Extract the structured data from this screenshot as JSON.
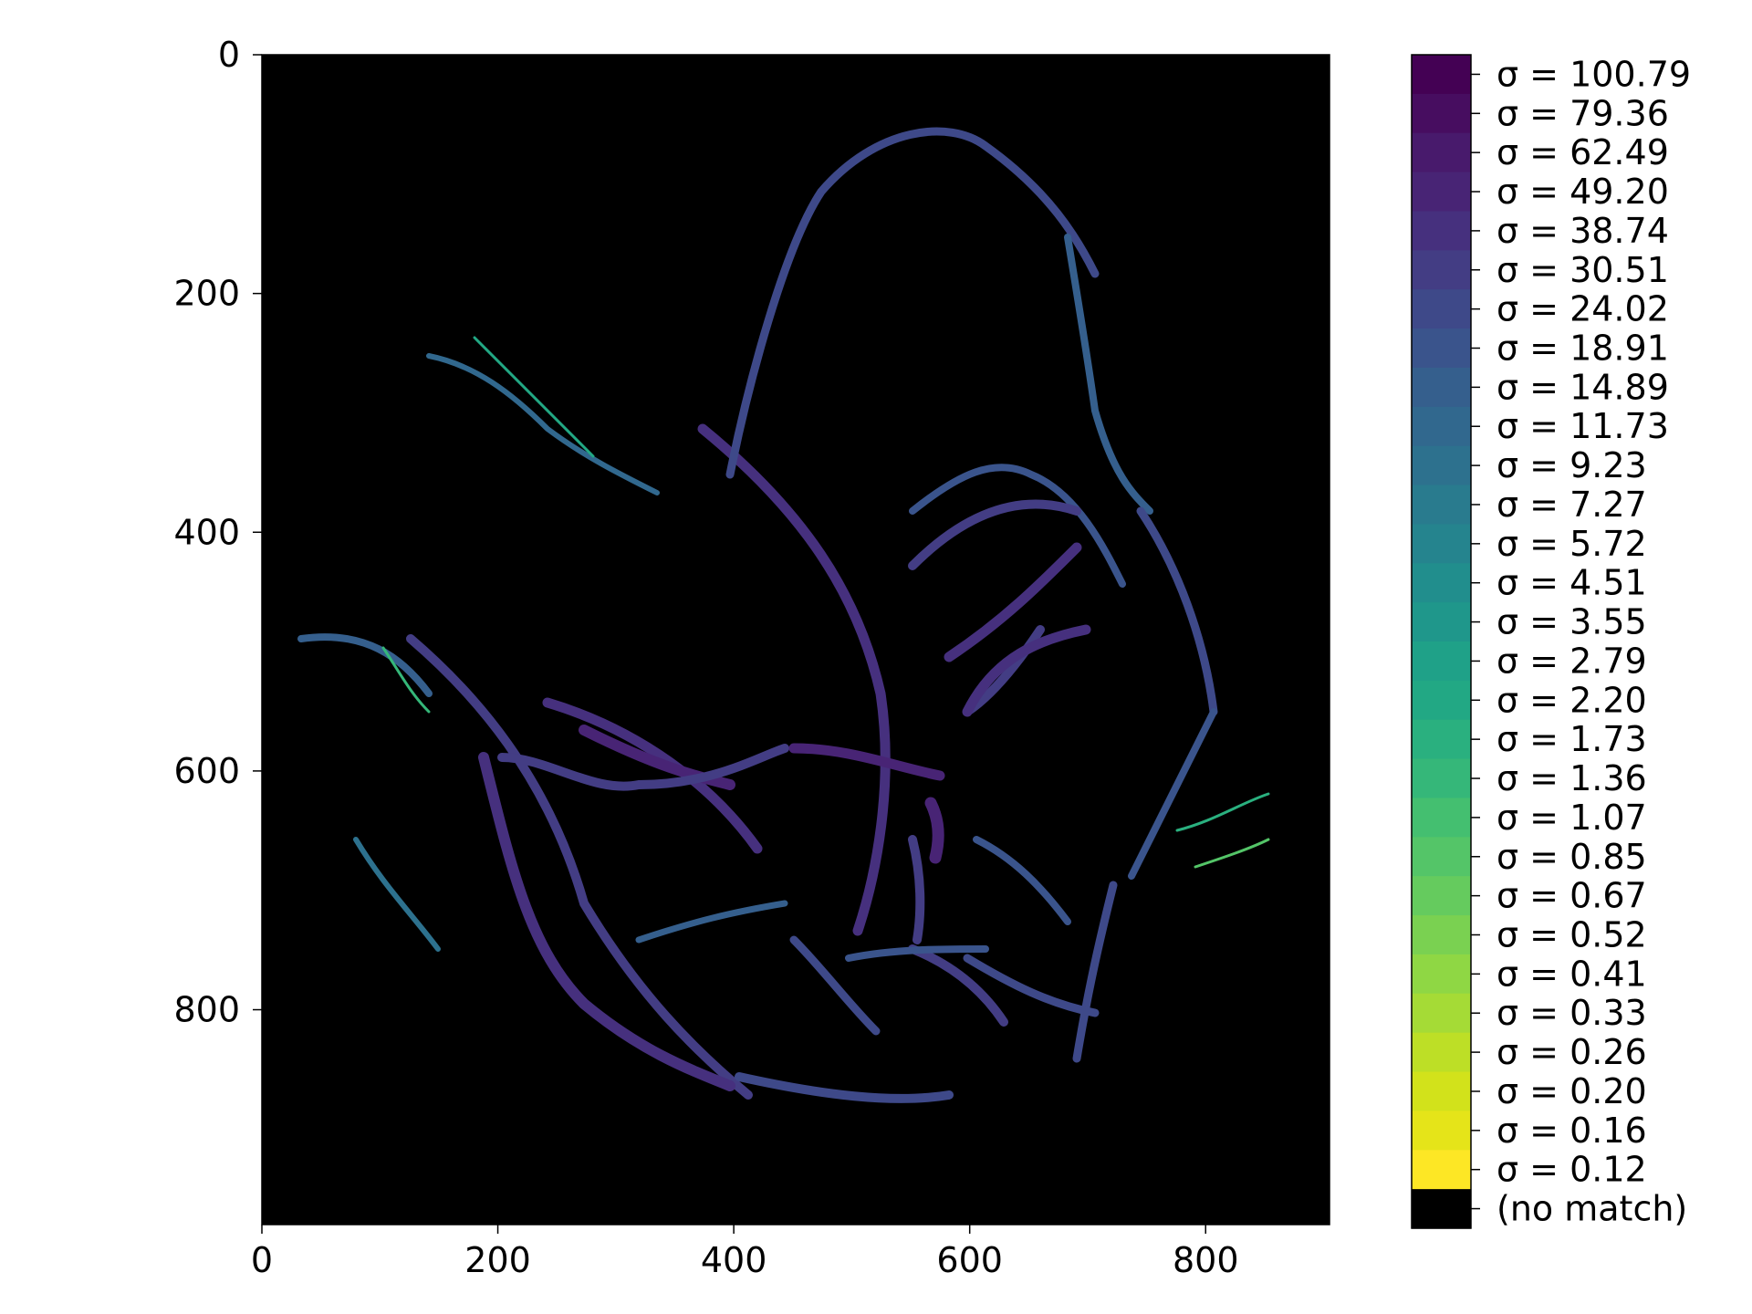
{
  "chart_data": {
    "type": "heatmap",
    "title": "",
    "xlabel": "",
    "ylabel": "",
    "xlim": [
      0,
      905
    ],
    "ylim": [
      980,
      0
    ],
    "x_ticks": [
      "0",
      "200",
      "400",
      "600",
      "800"
    ],
    "y_ticks": [
      "0",
      "200",
      "400",
      "600",
      "800"
    ],
    "background": "#000000",
    "description_colormap": "viridis_r",
    "colorbar": {
      "position": "right",
      "categories": [
        {
          "label": "σ = 100.79",
          "color": "#440154"
        },
        {
          "label": "σ = 79.36",
          "color": "#470d60"
        },
        {
          "label": "σ = 62.49",
          "color": "#481a6c"
        },
        {
          "label": "σ = 49.20",
          "color": "#482475"
        },
        {
          "label": "σ = 38.74",
          "color": "#46307e"
        },
        {
          "label": "σ = 30.51",
          "color": "#433d84"
        },
        {
          "label": "σ = 24.02",
          "color": "#3e4989"
        },
        {
          "label": "σ = 18.91",
          "color": "#3a548c"
        },
        {
          "label": "σ = 14.89",
          "color": "#355f8d"
        },
        {
          "label": "σ = 11.73",
          "color": "#31688e"
        },
        {
          "label": "σ = 9.23",
          "color": "#2d718e"
        },
        {
          "label": "σ = 7.27",
          "color": "#297b8e"
        },
        {
          "label": "σ = 5.72",
          "color": "#25848e"
        },
        {
          "label": "σ = 4.51",
          "color": "#218e8d"
        },
        {
          "label": "σ = 3.55",
          "color": "#1f978b"
        },
        {
          "label": "σ = 2.79",
          "color": "#1fa188"
        },
        {
          "label": "σ = 2.20",
          "color": "#22a884"
        },
        {
          "label": "σ = 1.73",
          "color": "#2ab07f"
        },
        {
          "label": "σ = 1.36",
          "color": "#35b779"
        },
        {
          "label": "σ = 1.07",
          "color": "#44bf70"
        },
        {
          "label": "σ = 0.85",
          "color": "#54c568"
        },
        {
          "label": "σ = 0.67",
          "color": "#65cb5e"
        },
        {
          "label": "σ = 0.52",
          "color": "#7ad151"
        },
        {
          "label": "σ = 0.41",
          "color": "#8fd744"
        },
        {
          "label": "σ = 0.33",
          "color": "#a5db36"
        },
        {
          "label": "σ = 0.26",
          "color": "#bddf26"
        },
        {
          "label": "σ = 0.20",
          "color": "#d2e21b"
        },
        {
          "label": "σ = 0.16",
          "color": "#e5e419"
        },
        {
          "label": "σ = 0.12",
          "color": "#fde725"
        },
        {
          "label": "(no match)",
          "color": "#000000"
        }
      ]
    }
  }
}
